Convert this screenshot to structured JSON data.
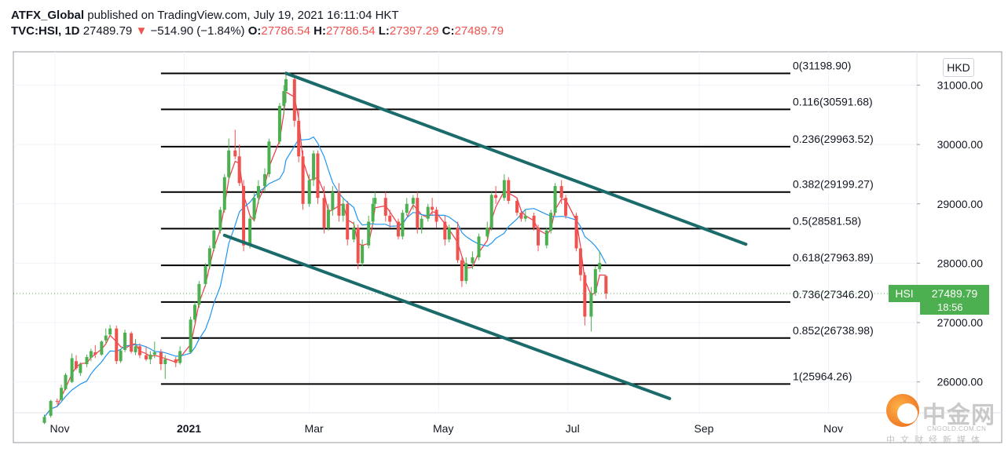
{
  "header": {
    "publisher": "ATFX_Global",
    "published_text": " published on TradingView.com, July 19, 2021 16:11:04 HKT",
    "symbol": "TVC:HSI, 1D",
    "last": "27489.79",
    "arrow": "▼",
    "change": "−514.90 (−1.84%)",
    "o_label": "O:",
    "o_value": "27786.54",
    "h_label": "H:",
    "h_value": "27786.54",
    "l_label": "L:",
    "l_value": "27397.29",
    "c_label": "C:",
    "c_value": "27489.79"
  },
  "currency": "HKD",
  "price_tag": {
    "symbol": "HSI",
    "price": "27489.79",
    "countdown": "18:56"
  },
  "watermark": {
    "name_cn": "中金网",
    "url": "CNGOLD.COM.CN",
    "sub_cn": "中文财经新媒体"
  },
  "colors": {
    "up": "#4caf50",
    "down": "#ef5350",
    "ma_fast": "#f23645",
    "ma_slow": "#2196f3",
    "channel": "#1b6b6b",
    "fib": "#000000"
  },
  "chart_data": {
    "type": "candlestick",
    "y_axis": {
      "min": 25650,
      "max": 31550,
      "ticks": [
        26000,
        27000,
        28000,
        29000,
        30000,
        31000
      ],
      "tick_labels": [
        "26000.00",
        "27000.00",
        "28000.00",
        "29000.00",
        "30000.00",
        "31000.00"
      ]
    },
    "x_axis": {
      "ticks": [
        {
          "date": "2020-11-01",
          "label": "Nov",
          "bold": false
        },
        {
          "date": "2021-01-01",
          "label": "2021",
          "bold": true
        },
        {
          "date": "2021-03-01",
          "label": "Mar",
          "bold": false
        },
        {
          "date": "2021-05-01",
          "label": "May",
          "bold": false
        },
        {
          "date": "2021-07-01",
          "label": "Jul",
          "bold": false
        },
        {
          "date": "2021-09-01",
          "label": "Sep",
          "bold": false
        },
        {
          "date": "2021-11-01",
          "label": "Nov",
          "bold": false
        }
      ]
    },
    "last_price": 27489.79,
    "fib_levels": [
      {
        "label": "0(31198.90)",
        "value": 31198.9
      },
      {
        "label": "0.116(30591.68)",
        "value": 30591.68
      },
      {
        "label": "0.236(29963.52)",
        "value": 29963.52
      },
      {
        "label": "0.382(29199.27)",
        "value": 29199.27
      },
      {
        "label": "0.5(28581.58)",
        "value": 28581.58
      },
      {
        "label": "0.618(27963.89)",
        "value": 27963.89
      },
      {
        "label": "0.736(27346.20)",
        "value": 27346.2
      },
      {
        "label": "0.852(26738.98)",
        "value": 26738.98
      },
      {
        "label": "1(25964.26)",
        "value": 25964.26
      }
    ],
    "fib_range": {
      "start": "2020-12-21",
      "end": "2021-10-14"
    },
    "channel_lines": [
      {
        "start": {
          "date": "2021-02-18",
          "value": 31200
        },
        "end": {
          "date": "2021-09-23",
          "value": 28320
        }
      },
      {
        "start": {
          "date": "2021-01-20",
          "value": 28470
        },
        "end": {
          "date": "2021-08-18",
          "value": 25720
        }
      }
    ],
    "candles": [
      {
        "date": "2020-10-27",
        "o": 25310,
        "h": 25450,
        "l": 25290,
        "c": 25410
      },
      {
        "date": "2020-10-30",
        "o": 25430,
        "h": 25700,
        "l": 25400,
        "c": 25680
      },
      {
        "date": "2020-11-02",
        "o": 25680,
        "h": 25720,
        "l": 25630,
        "c": 25670
      },
      {
        "date": "2020-11-04",
        "o": 25700,
        "h": 25950,
        "l": 25680,
        "c": 25900
      },
      {
        "date": "2020-11-06",
        "o": 25880,
        "h": 26150,
        "l": 25860,
        "c": 26120
      },
      {
        "date": "2020-11-09",
        "o": 26000,
        "h": 26480,
        "l": 25980,
        "c": 26400
      },
      {
        "date": "2020-11-11",
        "o": 26350,
        "h": 26450,
        "l": 26200,
        "c": 26230
      },
      {
        "date": "2020-11-13",
        "o": 26150,
        "h": 26330,
        "l": 26100,
        "c": 26300
      },
      {
        "date": "2020-11-16",
        "o": 26300,
        "h": 26460,
        "l": 26250,
        "c": 26420
      },
      {
        "date": "2020-11-18",
        "o": 26410,
        "h": 26560,
        "l": 26350,
        "c": 26520
      },
      {
        "date": "2020-11-20",
        "o": 26500,
        "h": 26620,
        "l": 26400,
        "c": 26460
      },
      {
        "date": "2020-11-23",
        "o": 26460,
        "h": 26700,
        "l": 26440,
        "c": 26680
      },
      {
        "date": "2020-11-25",
        "o": 26700,
        "h": 26900,
        "l": 26650,
        "c": 26780
      },
      {
        "date": "2020-11-27",
        "o": 26800,
        "h": 26960,
        "l": 26780,
        "c": 26900
      },
      {
        "date": "2020-11-30",
        "o": 26900,
        "h": 26950,
        "l": 26300,
        "c": 26350
      },
      {
        "date": "2020-12-02",
        "o": 26350,
        "h": 26560,
        "l": 26320,
        "c": 26530
      },
      {
        "date": "2020-12-04",
        "o": 26540,
        "h": 26880,
        "l": 26500,
        "c": 26830
      },
      {
        "date": "2020-12-07",
        "o": 26820,
        "h": 26850,
        "l": 26480,
        "c": 26510
      },
      {
        "date": "2020-12-09",
        "o": 26500,
        "h": 26720,
        "l": 26450,
        "c": 26600
      },
      {
        "date": "2020-12-11",
        "o": 26600,
        "h": 26650,
        "l": 26400,
        "c": 26450
      },
      {
        "date": "2020-12-14",
        "o": 26450,
        "h": 26600,
        "l": 26350,
        "c": 26380
      },
      {
        "date": "2020-12-16",
        "o": 26380,
        "h": 26520,
        "l": 26300,
        "c": 26460
      },
      {
        "date": "2020-12-18",
        "o": 26460,
        "h": 26680,
        "l": 26400,
        "c": 26500
      },
      {
        "date": "2020-12-21",
        "o": 26500,
        "h": 26550,
        "l": 26200,
        "c": 26300
      },
      {
        "date": "2020-12-23",
        "o": 26300,
        "h": 26450,
        "l": 26050,
        "c": 26380
      },
      {
        "date": "2020-12-28",
        "o": 26380,
        "h": 26420,
        "l": 26250,
        "c": 26320
      },
      {
        "date": "2020-12-30",
        "o": 26320,
        "h": 26600,
        "l": 26290,
        "c": 26520
      },
      {
        "date": "2021-01-04",
        "o": 26500,
        "h": 27100,
        "l": 26480,
        "c": 27050
      },
      {
        "date": "2021-01-06",
        "o": 27050,
        "h": 27350,
        "l": 27000,
        "c": 27300
      },
      {
        "date": "2021-01-08",
        "o": 27300,
        "h": 27700,
        "l": 27250,
        "c": 27650
      },
      {
        "date": "2021-01-11",
        "o": 27650,
        "h": 28000,
        "l": 27600,
        "c": 27950
      },
      {
        "date": "2021-01-13",
        "o": 27950,
        "h": 28300,
        "l": 27900,
        "c": 28250
      },
      {
        "date": "2021-01-15",
        "o": 28250,
        "h": 28600,
        "l": 28200,
        "c": 28550
      },
      {
        "date": "2021-01-18",
        "o": 28550,
        "h": 28950,
        "l": 28500,
        "c": 28900
      },
      {
        "date": "2021-01-20",
        "o": 28900,
        "h": 29500,
        "l": 28850,
        "c": 29450
      },
      {
        "date": "2021-01-22",
        "o": 29450,
        "h": 30100,
        "l": 29400,
        "c": 29900
      },
      {
        "date": "2021-01-25",
        "o": 29900,
        "h": 30250,
        "l": 29750,
        "c": 29800
      },
      {
        "date": "2021-01-27",
        "o": 29800,
        "h": 30000,
        "l": 29300,
        "c": 29350
      },
      {
        "date": "2021-01-29",
        "o": 29300,
        "h": 29400,
        "l": 28200,
        "c": 28300
      },
      {
        "date": "2021-02-01",
        "o": 28300,
        "h": 28800,
        "l": 28250,
        "c": 28750
      },
      {
        "date": "2021-02-03",
        "o": 28750,
        "h": 29200,
        "l": 28700,
        "c": 29100
      },
      {
        "date": "2021-02-05",
        "o": 29100,
        "h": 29400,
        "l": 29000,
        "c": 29300
      },
      {
        "date": "2021-02-08",
        "o": 29300,
        "h": 29600,
        "l": 29200,
        "c": 29500
      },
      {
        "date": "2021-02-10",
        "o": 29500,
        "h": 30100,
        "l": 29450,
        "c": 30050
      },
      {
        "date": "2021-02-15",
        "o": 30050,
        "h": 30700,
        "l": 30000,
        "c": 30650
      },
      {
        "date": "2021-02-17",
        "o": 30650,
        "h": 31000,
        "l": 30500,
        "c": 30900
      },
      {
        "date": "2021-02-18",
        "o": 30900,
        "h": 31198,
        "l": 30700,
        "c": 31100
      },
      {
        "date": "2021-02-22",
        "o": 31100,
        "h": 31150,
        "l": 30300,
        "c": 30400
      },
      {
        "date": "2021-02-24",
        "o": 30400,
        "h": 30600,
        "l": 29700,
        "c": 29800
      },
      {
        "date": "2021-02-26",
        "o": 29800,
        "h": 29900,
        "l": 28900,
        "c": 29000
      },
      {
        "date": "2021-03-01",
        "o": 29000,
        "h": 29500,
        "l": 28950,
        "c": 29400
      },
      {
        "date": "2021-03-03",
        "o": 29400,
        "h": 29900,
        "l": 29300,
        "c": 29850
      },
      {
        "date": "2021-03-05",
        "o": 29850,
        "h": 29900,
        "l": 29000,
        "c": 29100
      },
      {
        "date": "2021-03-08",
        "o": 29100,
        "h": 29300,
        "l": 28500,
        "c": 28600
      },
      {
        "date": "2021-03-10",
        "o": 28600,
        "h": 29000,
        "l": 28550,
        "c": 28900
      },
      {
        "date": "2021-03-12",
        "o": 28900,
        "h": 29300,
        "l": 28800,
        "c": 29200
      },
      {
        "date": "2021-03-15",
        "o": 29200,
        "h": 29350,
        "l": 28700,
        "c": 28800
      },
      {
        "date": "2021-03-17",
        "o": 28800,
        "h": 29100,
        "l": 28700,
        "c": 29000
      },
      {
        "date": "2021-03-19",
        "o": 29000,
        "h": 29050,
        "l": 28300,
        "c": 28400
      },
      {
        "date": "2021-03-22",
        "o": 28400,
        "h": 28700,
        "l": 28350,
        "c": 28600
      },
      {
        "date": "2021-03-24",
        "o": 28600,
        "h": 28650,
        "l": 27900,
        "c": 28000
      },
      {
        "date": "2021-03-26",
        "o": 28000,
        "h": 28400,
        "l": 27950,
        "c": 28300
      },
      {
        "date": "2021-03-29",
        "o": 28300,
        "h": 28800,
        "l": 28250,
        "c": 28700
      },
      {
        "date": "2021-03-31",
        "o": 28700,
        "h": 29100,
        "l": 28650,
        "c": 29000
      },
      {
        "date": "2021-04-01",
        "o": 29000,
        "h": 29200,
        "l": 28900,
        "c": 29100
      },
      {
        "date": "2021-04-06",
        "o": 29100,
        "h": 29200,
        "l": 28700,
        "c": 28800
      },
      {
        "date": "2021-04-08",
        "o": 28800,
        "h": 28900,
        "l": 28600,
        "c": 28700
      },
      {
        "date": "2021-04-12",
        "o": 28700,
        "h": 28750,
        "l": 28400,
        "c": 28450
      },
      {
        "date": "2021-04-14",
        "o": 28450,
        "h": 28900,
        "l": 28400,
        "c": 28850
      },
      {
        "date": "2021-04-16",
        "o": 28850,
        "h": 29100,
        "l": 28800,
        "c": 29000
      },
      {
        "date": "2021-04-19",
        "o": 29000,
        "h": 29150,
        "l": 28900,
        "c": 29100
      },
      {
        "date": "2021-04-21",
        "o": 29100,
        "h": 29200,
        "l": 28500,
        "c": 28600
      },
      {
        "date": "2021-04-23",
        "o": 28600,
        "h": 28800,
        "l": 28500,
        "c": 28750
      },
      {
        "date": "2021-04-26",
        "o": 28750,
        "h": 29000,
        "l": 28700,
        "c": 28950
      },
      {
        "date": "2021-04-28",
        "o": 28950,
        "h": 29100,
        "l": 28800,
        "c": 28900
      },
      {
        "date": "2021-04-30",
        "o": 28900,
        "h": 28950,
        "l": 28600,
        "c": 28700
      },
      {
        "date": "2021-05-04",
        "o": 28700,
        "h": 28800,
        "l": 28300,
        "c": 28400
      },
      {
        "date": "2021-05-06",
        "o": 28400,
        "h": 28650,
        "l": 28350,
        "c": 28600
      },
      {
        "date": "2021-05-10",
        "o": 28600,
        "h": 28700,
        "l": 28000,
        "c": 28050
      },
      {
        "date": "2021-05-12",
        "o": 28050,
        "h": 28100,
        "l": 27600,
        "c": 27700
      },
      {
        "date": "2021-05-14",
        "o": 27700,
        "h": 28100,
        "l": 27650,
        "c": 28000
      },
      {
        "date": "2021-05-17",
        "o": 28000,
        "h": 28200,
        "l": 27900,
        "c": 28100
      },
      {
        "date": "2021-05-20",
        "o": 28100,
        "h": 28500,
        "l": 28050,
        "c": 28450
      },
      {
        "date": "2021-05-24",
        "o": 28450,
        "h": 28700,
        "l": 28400,
        "c": 28600
      },
      {
        "date": "2021-05-26",
        "o": 28600,
        "h": 29200,
        "l": 28550,
        "c": 29150
      },
      {
        "date": "2021-05-28",
        "o": 29150,
        "h": 29300,
        "l": 29000,
        "c": 29100
      },
      {
        "date": "2021-06-01",
        "o": 29100,
        "h": 29500,
        "l": 29050,
        "c": 29400
      },
      {
        "date": "2021-06-03",
        "o": 29400,
        "h": 29450,
        "l": 29000,
        "c": 29050
      },
      {
        "date": "2021-06-07",
        "o": 29050,
        "h": 29100,
        "l": 28800,
        "c": 28850
      },
      {
        "date": "2021-06-09",
        "o": 28850,
        "h": 28900,
        "l": 28700,
        "c": 28750
      },
      {
        "date": "2021-06-11",
        "o": 28750,
        "h": 28900,
        "l": 28700,
        "c": 28800
      },
      {
        "date": "2021-06-15",
        "o": 28800,
        "h": 28850,
        "l": 28550,
        "c": 28600
      },
      {
        "date": "2021-06-17",
        "o": 28600,
        "h": 28650,
        "l": 28200,
        "c": 28300
      },
      {
        "date": "2021-06-21",
        "o": 28300,
        "h": 28600,
        "l": 28250,
        "c": 28550
      },
      {
        "date": "2021-06-23",
        "o": 28550,
        "h": 28900,
        "l": 28500,
        "c": 28850
      },
      {
        "date": "2021-06-25",
        "o": 28850,
        "h": 29350,
        "l": 28800,
        "c": 29300
      },
      {
        "date": "2021-06-28",
        "o": 29300,
        "h": 29400,
        "l": 29000,
        "c": 29100
      },
      {
        "date": "2021-06-30",
        "o": 29100,
        "h": 29150,
        "l": 28750,
        "c": 28800
      },
      {
        "date": "2021-07-05",
        "o": 28800,
        "h": 28850,
        "l": 28200,
        "c": 28250
      },
      {
        "date": "2021-07-07",
        "o": 28250,
        "h": 28300,
        "l": 27700,
        "c": 27800
      },
      {
        "date": "2021-07-09",
        "o": 27800,
        "h": 27850,
        "l": 26950,
        "c": 27100
      },
      {
        "date": "2021-07-12",
        "o": 27100,
        "h": 27600,
        "l": 26850,
        "c": 27500
      },
      {
        "date": "2021-07-14",
        "o": 27500,
        "h": 27950,
        "l": 27450,
        "c": 27900
      },
      {
        "date": "2021-07-16",
        "o": 27900,
        "h": 28200,
        "l": 27850,
        "c": 28004
      },
      {
        "date": "2021-07-19",
        "o": 27786.54,
        "h": 27786.54,
        "l": 27397.29,
        "c": 27489.79
      }
    ]
  }
}
